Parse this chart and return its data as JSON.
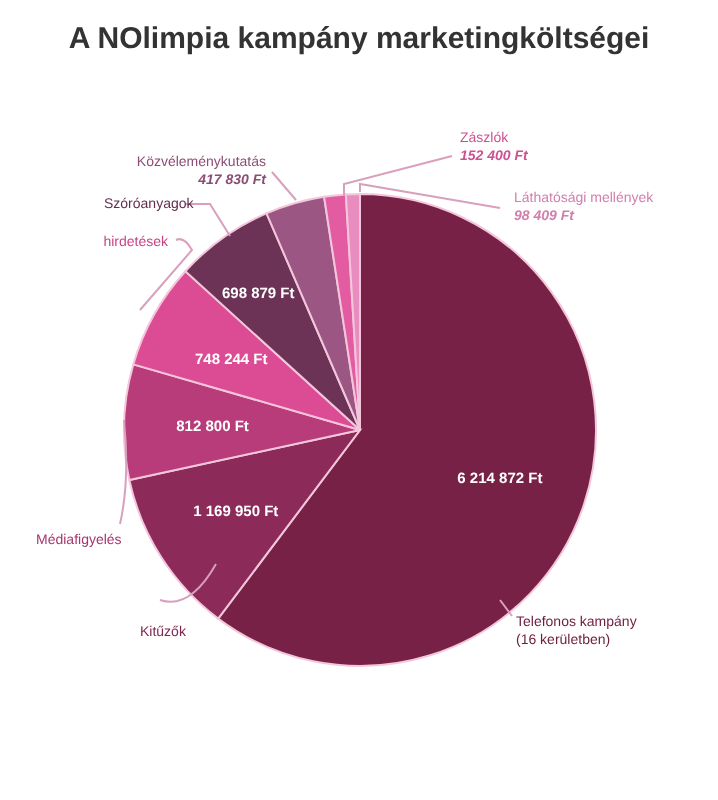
{
  "chart_data": {
    "type": "pie",
    "title": "A NOlimpia kampány marketingköltségei",
    "categories": [
      "Telefonos kampány\n(16 kerületben)",
      "Kitűzők",
      "Médiafigyelés",
      "hirdetések",
      "Szóróanyagok",
      "Közvéleménykutatás",
      "Zászlók",
      "Láthatósági mellények"
    ],
    "values": [
      6214872,
      1169950,
      812800,
      748244,
      698879,
      417830,
      152400,
      98409
    ],
    "value_labels": [
      "6 214 872 Ft",
      "1 169 950 Ft",
      "812 800 Ft",
      "748 244 Ft",
      "698 879 Ft",
      "417 830 Ft",
      "152 400 Ft",
      "98 409 Ft"
    ],
    "colors": [
      "#782146",
      "#8c2a5a",
      "#b83c7a",
      "#dc4c94",
      "#6c3357",
      "#9b5683",
      "#e35ba1",
      "#e98dc1"
    ],
    "legend": false
  }
}
